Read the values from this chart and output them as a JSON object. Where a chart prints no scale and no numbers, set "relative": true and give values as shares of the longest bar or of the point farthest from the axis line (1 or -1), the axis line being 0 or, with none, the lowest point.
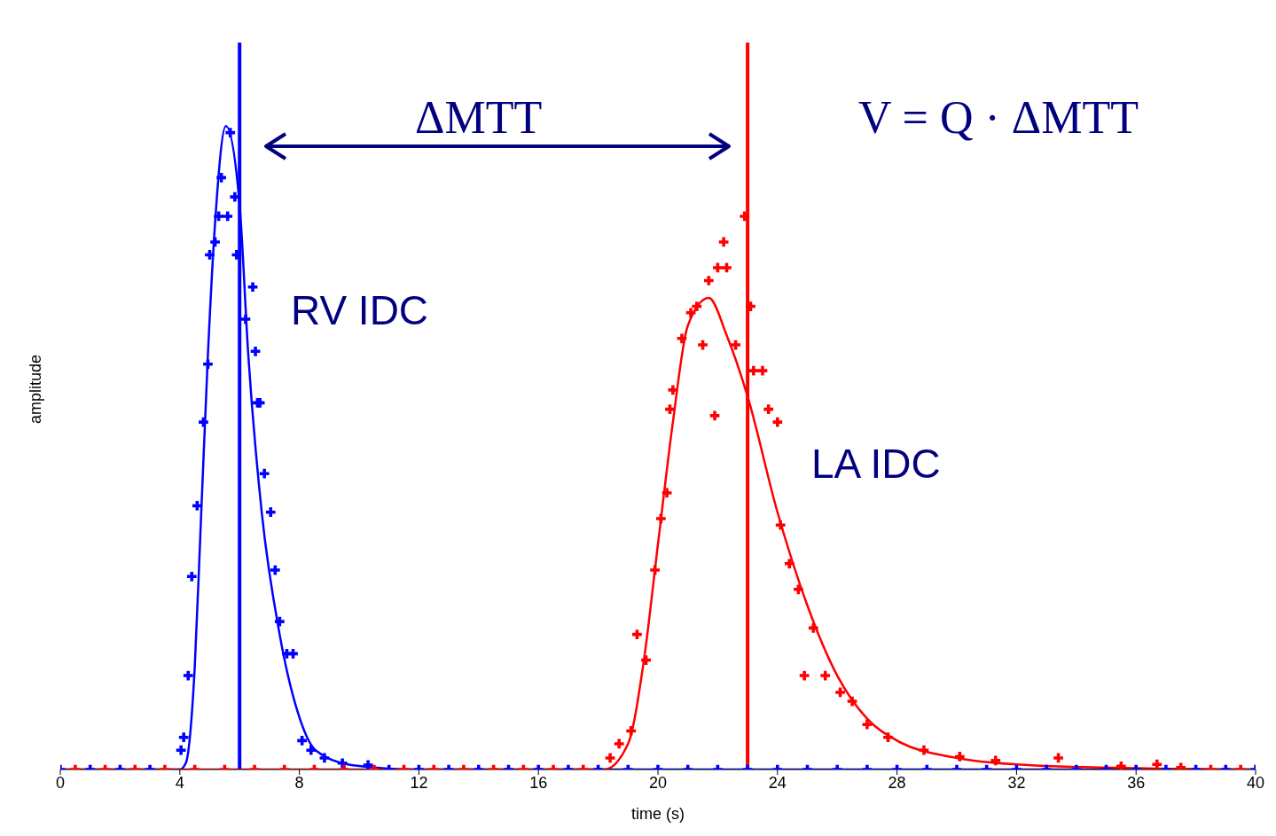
{
  "chart_data": {
    "type": "line",
    "relative": true,
    "xlabel": "time (s)",
    "ylabel": "amplitude",
    "xlim": [
      0,
      40
    ],
    "xticks": [
      0,
      4,
      8,
      12,
      16,
      20,
      24,
      28,
      32,
      36,
      40
    ],
    "tick_labels": "x",
    "grid": false,
    "annotations": [
      "ΔMTT",
      "V = Q · ΔMTT",
      "RV IDC",
      "LA IDC"
    ],
    "ref_lines": [
      {
        "axis": "x",
        "value": 6,
        "color": "#0000ff"
      },
      {
        "axis": "x",
        "value": 23,
        "color": "#ff0000"
      }
    ],
    "series": [
      {
        "color": "#0000ff",
        "line_style": "solid",
        "x": [
          0,
          4,
          4.2,
          4.5,
          4.7,
          4.94,
          5.18,
          5.54,
          6.0,
          6.29,
          6.74,
          7.34,
          7.94,
          8.54,
          9.74,
          12,
          40
        ],
        "values": [
          0,
          0,
          0.01,
          0.16,
          0.38,
          0.645,
          0.85,
          1.0,
          0.878,
          0.645,
          0.4,
          0.21,
          0.09,
          0.03,
          0.007,
          0,
          0
        ]
      },
      {
        "type": "scatter",
        "color": "#0000ff",
        "marker": "cross",
        "x": [
          0,
          1,
          2,
          3,
          4.04,
          4.13,
          4.28,
          4.4,
          4.58,
          4.79,
          4.94,
          5.0,
          5.18,
          5.3,
          5.39,
          5.6,
          5.69,
          5.84,
          5.9,
          6.2,
          6.44,
          6.53,
          6.6,
          6.68,
          6.83,
          7.04,
          7.19,
          7.34,
          7.58,
          7.79,
          8.09,
          8.39,
          8.84,
          9.44,
          10.3,
          11,
          12,
          13,
          14,
          15,
          16,
          17,
          18,
          19,
          20,
          21,
          22,
          23,
          24,
          25,
          26,
          27,
          28,
          29,
          30,
          31,
          32,
          33,
          34,
          35,
          36,
          37,
          38,
          39,
          40
        ],
        "values": [
          0,
          0,
          0,
          0,
          0.03,
          0.05,
          0.146,
          0.3,
          0.41,
          0.54,
          0.63,
          0.8,
          0.82,
          0.86,
          0.92,
          0.86,
          0.99,
          0.89,
          0.8,
          0.7,
          0.75,
          0.65,
          0.57,
          0.57,
          0.46,
          0.4,
          0.31,
          0.23,
          0.18,
          0.18,
          0.045,
          0.03,
          0.018,
          0.01,
          0.007,
          0,
          0,
          0,
          0,
          0,
          0,
          0,
          0,
          0,
          0,
          0,
          0,
          0,
          0,
          0,
          0,
          0,
          0,
          0,
          0,
          0,
          0,
          0,
          0,
          0,
          0,
          0,
          0,
          0,
          0
        ]
      },
      {
        "color": "#ff0000",
        "line_style": "solid",
        "x": [
          0,
          18.2,
          19,
          19.5,
          20,
          20.5,
          21,
          21.7,
          22.3,
          23,
          24,
          25,
          26,
          27,
          28,
          30,
          32,
          36,
          40
        ],
        "values": [
          0,
          0,
          0.04,
          0.16,
          0.35,
          0.54,
          0.69,
          0.733,
          0.675,
          0.58,
          0.4,
          0.255,
          0.146,
          0.079,
          0.045,
          0.018,
          0.008,
          0.002,
          0
        ]
      },
      {
        "type": "scatter",
        "color": "#ff0000",
        "marker": "cross",
        "x": [
          0.5,
          1.5,
          2.5,
          3.5,
          4.5,
          5.5,
          6.5,
          7.5,
          8.5,
          9.5,
          10.5,
          11.5,
          12.5,
          13.5,
          14.5,
          15.5,
          16.5,
          17.5,
          18.4,
          18.7,
          19.1,
          19.3,
          19.6,
          19.9,
          20.1,
          20.3,
          20.4,
          20.5,
          20.8,
          21.1,
          21.3,
          21.5,
          21.7,
          21.9,
          22.0,
          22.2,
          22.3,
          22.6,
          22.9,
          23.1,
          23.2,
          23.5,
          23.7,
          24.0,
          24.1,
          24.4,
          24.7,
          24.9,
          25.2,
          25.6,
          26.1,
          26.5,
          27.0,
          27.7,
          28.9,
          30.1,
          31.3,
          33.4,
          35.5,
          36.7,
          37.5,
          38.5,
          39.5
        ],
        "values": [
          0,
          0,
          0,
          0,
          0,
          0,
          0,
          0,
          0,
          0,
          0,
          0,
          0,
          0,
          0,
          0,
          0,
          0,
          0.018,
          0.04,
          0.06,
          0.21,
          0.17,
          0.31,
          0.39,
          0.43,
          0.56,
          0.59,
          0.67,
          0.71,
          0.72,
          0.66,
          0.76,
          0.55,
          0.78,
          0.82,
          0.78,
          0.66,
          0.86,
          0.72,
          0.62,
          0.62,
          0.56,
          0.54,
          0.38,
          0.32,
          0.28,
          0.146,
          0.22,
          0.146,
          0.12,
          0.106,
          0.07,
          0.05,
          0.03,
          0.02,
          0.014,
          0.018,
          0.005,
          0.008,
          0.003,
          0,
          0
        ]
      }
    ]
  }
}
